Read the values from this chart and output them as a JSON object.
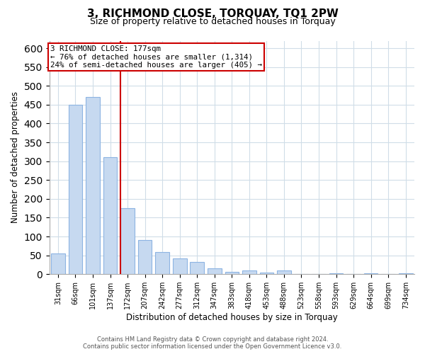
{
  "title": "3, RICHMOND CLOSE, TORQUAY, TQ1 2PW",
  "subtitle": "Size of property relative to detached houses in Torquay",
  "xlabel": "Distribution of detached houses by size in Torquay",
  "ylabel": "Number of detached properties",
  "bar_labels": [
    "31sqm",
    "66sqm",
    "101sqm",
    "137sqm",
    "172sqm",
    "207sqm",
    "242sqm",
    "277sqm",
    "312sqm",
    "347sqm",
    "383sqm",
    "418sqm",
    "453sqm",
    "488sqm",
    "523sqm",
    "558sqm",
    "593sqm",
    "629sqm",
    "664sqm",
    "699sqm",
    "734sqm"
  ],
  "bar_values": [
    55,
    450,
    470,
    310,
    175,
    90,
    58,
    42,
    32,
    15,
    6,
    9,
    4,
    9,
    1,
    0,
    2,
    0,
    3,
    0,
    2
  ],
  "bar_color": "#c6d9f0",
  "bar_edge_color": "#8db4e2",
  "marker_bar_index": 4,
  "marker_line_color": "#cc0000",
  "annotation_line1": "3 RICHMOND CLOSE: 177sqm",
  "annotation_line2": "← 76% of detached houses are smaller (1,314)",
  "annotation_line3": "24% of semi-detached houses are larger (405) →",
  "annotation_box_edge_color": "#cc0000",
  "ylim": [
    0,
    620
  ],
  "yticks": [
    0,
    50,
    100,
    150,
    200,
    250,
    300,
    350,
    400,
    450,
    500,
    550,
    600
  ],
  "grid_color": "#d0dde8",
  "background_color": "#ffffff",
  "footer_line1": "Contains HM Land Registry data © Crown copyright and database right 2024.",
  "footer_line2": "Contains public sector information licensed under the Open Government Licence v3.0."
}
